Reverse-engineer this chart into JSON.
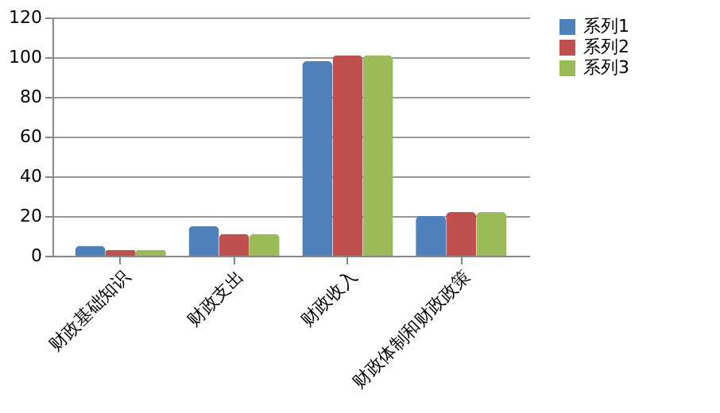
{
  "chart_data": {
    "type": "bar",
    "categories": [
      "财政基础知识",
      "财政支出",
      "财政收入",
      "财政体制和财政政策"
    ],
    "series": [
      {
        "name": "系列1",
        "color": "#4f81bd",
        "values": [
          5,
          15,
          98,
          20
        ]
      },
      {
        "name": "系列2",
        "color": "#c0504d",
        "values": [
          3,
          11,
          101,
          22
        ]
      },
      {
        "name": "系列3",
        "color": "#9bbb59",
        "values": [
          3,
          11,
          101,
          22
        ]
      }
    ],
    "ylim": [
      0,
      120
    ],
    "yticks": [
      0,
      20,
      40,
      60,
      80,
      100,
      120
    ],
    "grid": "y",
    "legend": "right"
  }
}
